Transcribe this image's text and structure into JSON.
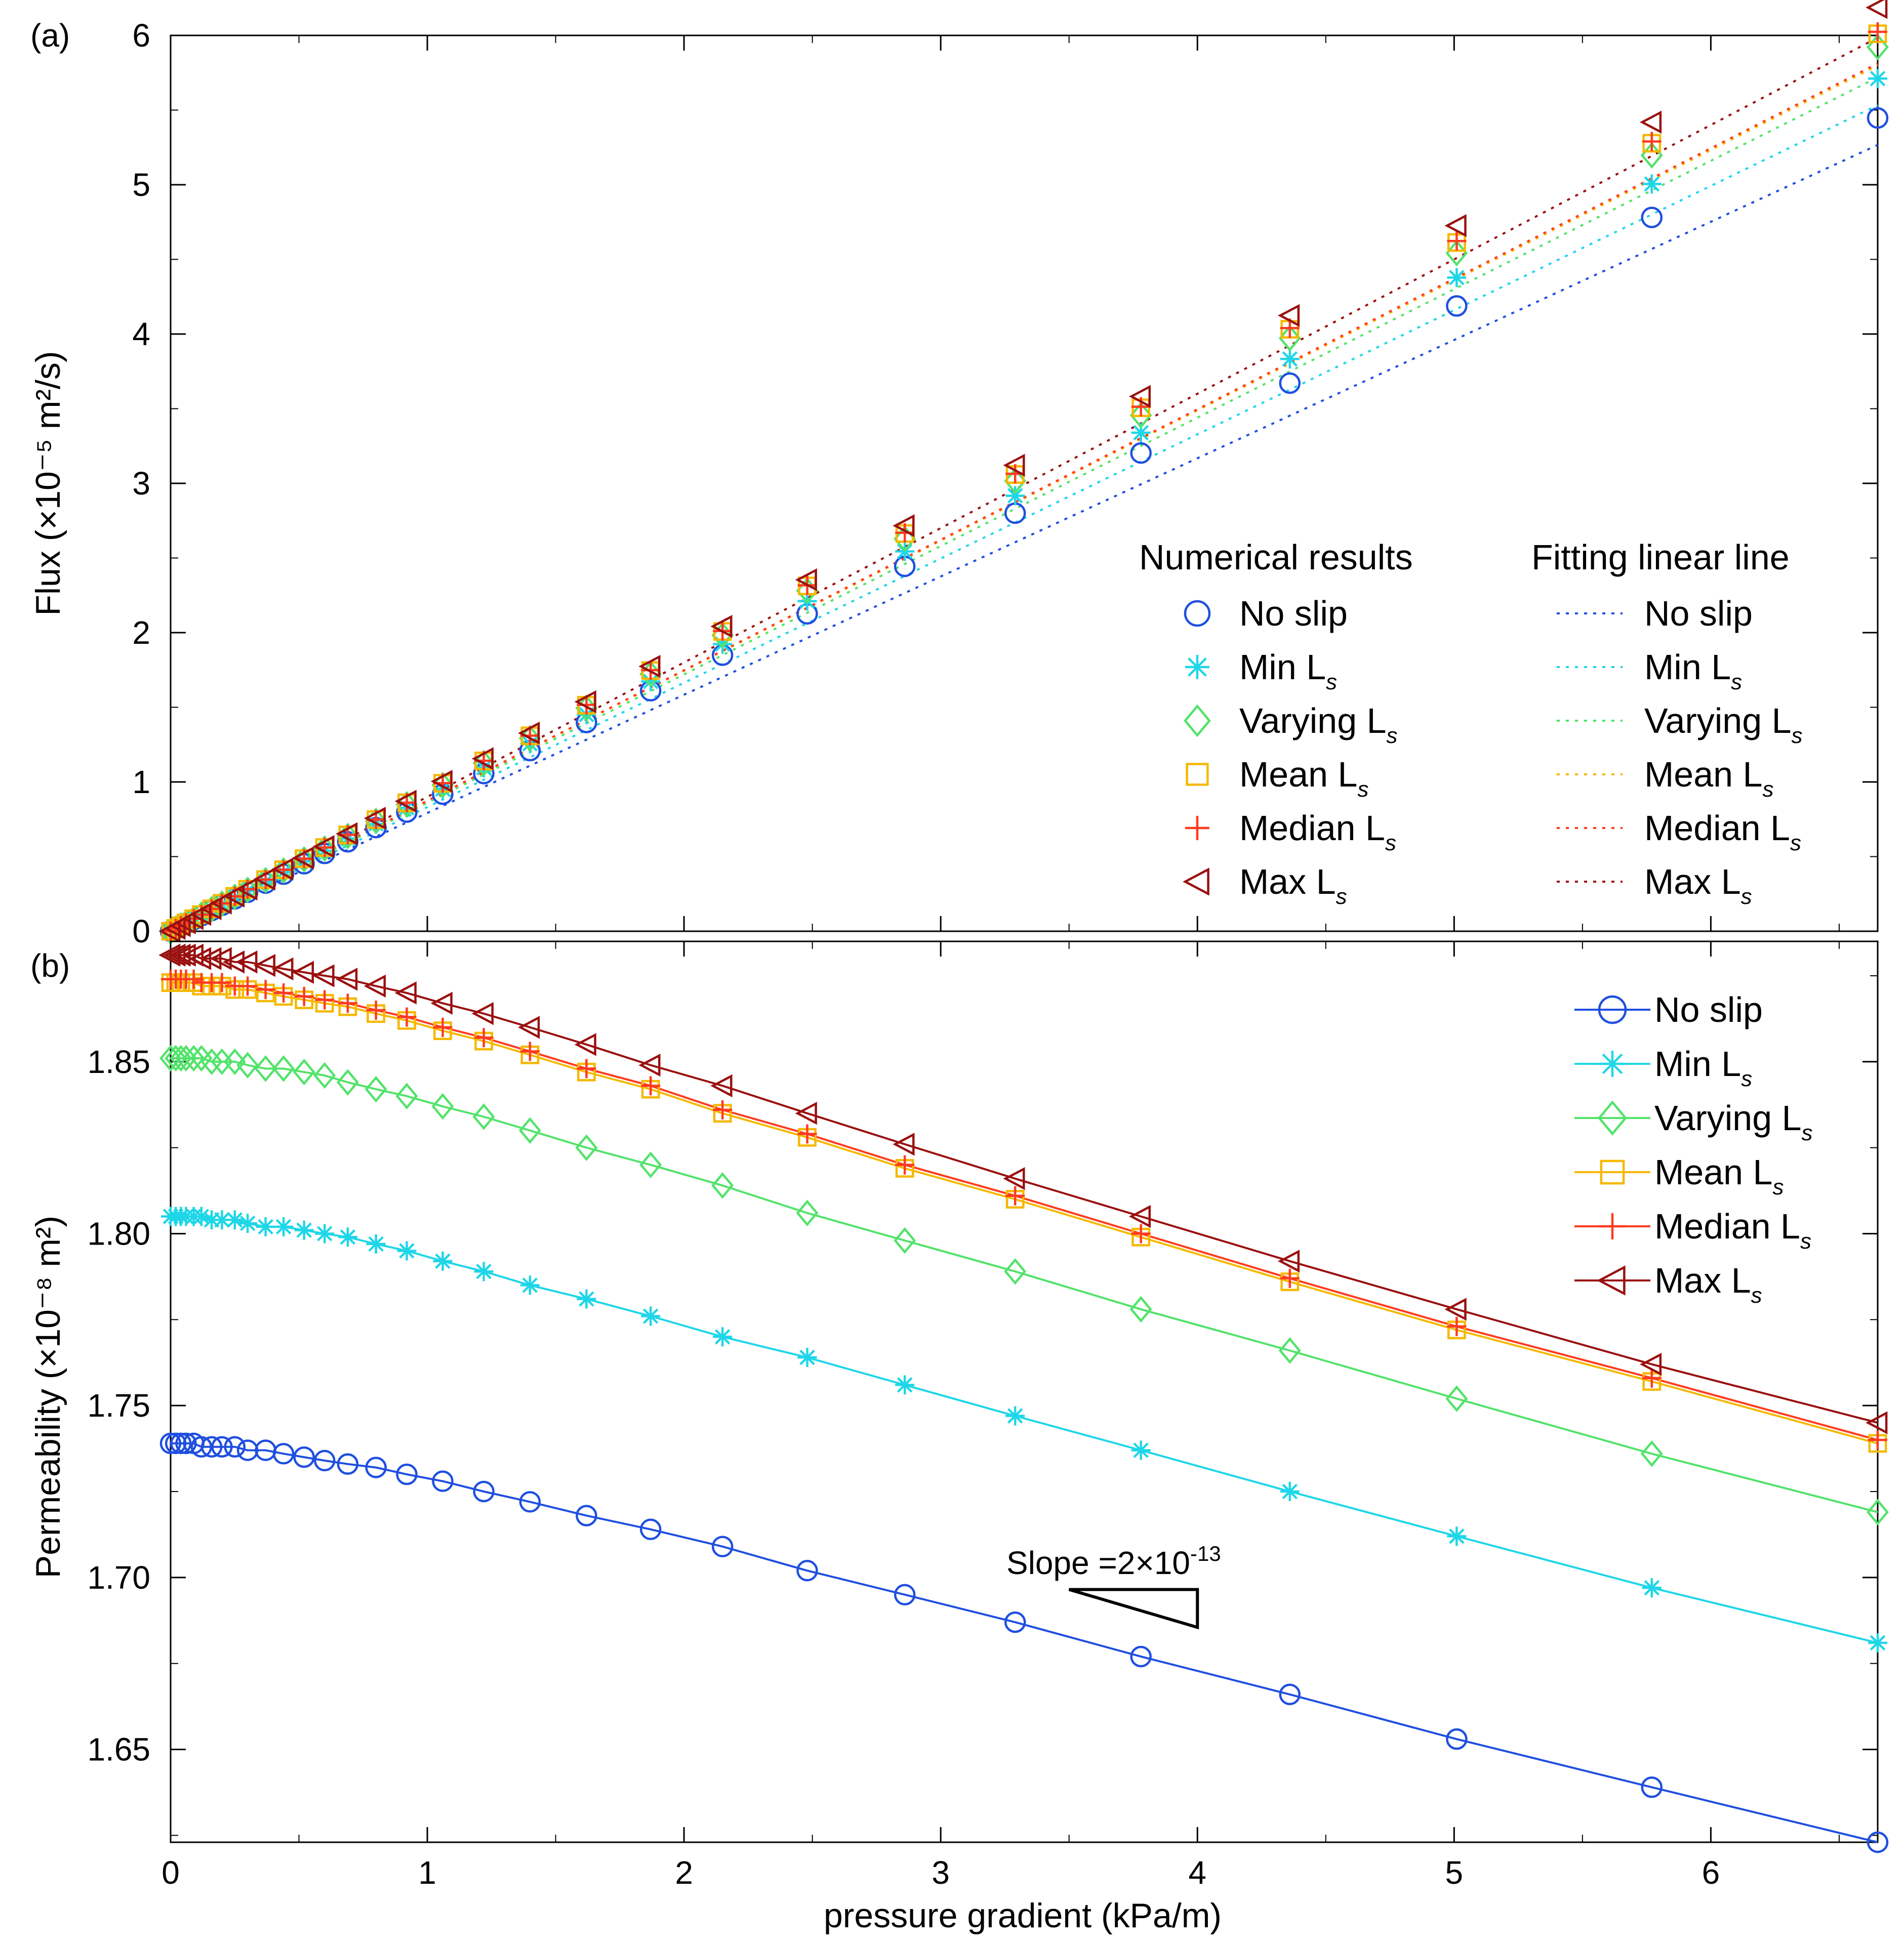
{
  "colors": {
    "no_slip": "#1f4fe0",
    "min": "#1fd6e8",
    "varying": "#52e36a",
    "mean": "#f5b800",
    "median": "#ff3b1f",
    "max": "#9a1010"
  },
  "chart_data": [
    {
      "id": "a",
      "type": "scatter",
      "panel_label": "(a)",
      "xlabel": "",
      "ylabel": "Flux (×10⁻⁵ m²/s)",
      "xlim": [
        0,
        6.65
      ],
      "ylim": [
        0,
        6
      ],
      "yticks": [
        "0",
        "1",
        "2",
        "3",
        "4",
        "5",
        "6"
      ],
      "legend_placement": "bottom-right",
      "legend": {
        "numerical_title": "Numerical results",
        "fitting_title": "Fitting linear line",
        "entries": [
          {
            "key": "no_slip",
            "label": "No slip",
            "marker": "circle"
          },
          {
            "key": "min",
            "label": "Min L",
            "sub": "s",
            "marker": "asterisk"
          },
          {
            "key": "varying",
            "label": "Varying L",
            "sub": "s",
            "marker": "diamond"
          },
          {
            "key": "mean",
            "label": "Mean L",
            "sub": "s",
            "marker": "square"
          },
          {
            "key": "median",
            "label": "Median L",
            "sub": "s",
            "marker": "plus"
          },
          {
            "key": "max",
            "label": "Max L",
            "sub": "s",
            "marker": "triangle-left"
          }
        ]
      },
      "x": [
        0.0,
        0.02,
        0.04,
        0.06,
        0.09,
        0.12,
        0.16,
        0.2,
        0.25,
        0.3,
        0.37,
        0.44,
        0.52,
        0.6,
        0.69,
        0.8,
        0.92,
        1.06,
        1.22,
        1.4,
        1.62,
        1.87,
        2.15,
        2.48,
        2.86,
        3.29,
        3.78,
        4.36,
        5.01,
        5.77,
        6.65
      ],
      "series": [
        {
          "key": "no_slip",
          "name": "No slip",
          "values": [
            0.0,
            0.017,
            0.035,
            0.052,
            0.078,
            0.104,
            0.139,
            0.174,
            0.217,
            0.261,
            0.322,
            0.382,
            0.452,
            0.521,
            0.599,
            0.694,
            0.798,
            0.918,
            1.056,
            1.21,
            1.398,
            1.611,
            1.849,
            2.126,
            2.444,
            2.8,
            3.203,
            3.671,
            4.188,
            4.781,
            5.447
          ],
          "fit_slope": 0.792
        },
        {
          "key": "min",
          "name": "Min L_s",
          "values": [
            0.0,
            0.018,
            0.036,
            0.054,
            0.081,
            0.108,
            0.144,
            0.18,
            0.225,
            0.271,
            0.333,
            0.396,
            0.468,
            0.54,
            0.621,
            0.719,
            0.827,
            0.952,
            1.095,
            1.256,
            1.451,
            1.673,
            1.923,
            2.211,
            2.544,
            2.917,
            3.339,
            3.833,
            4.378,
            5.005,
            5.711
          ],
          "fit_slope": 0.832
        },
        {
          "key": "varying",
          "name": "Varying L_s",
          "values": [
            0.0,
            0.018,
            0.037,
            0.055,
            0.083,
            0.111,
            0.148,
            0.185,
            0.231,
            0.277,
            0.342,
            0.407,
            0.481,
            0.554,
            0.638,
            0.739,
            0.85,
            0.979,
            1.126,
            1.292,
            1.494,
            1.723,
            1.982,
            2.281,
            2.628,
            3.016,
            3.456,
            3.972,
            4.542,
            5.197,
            5.922
          ],
          "fit_slope": 0.86
        },
        {
          "key": "mean",
          "name": "Mean L_s",
          "values": [
            0.0,
            0.019,
            0.037,
            0.056,
            0.084,
            0.112,
            0.15,
            0.187,
            0.234,
            0.281,
            0.346,
            0.412,
            0.486,
            0.561,
            0.645,
            0.748,
            0.86,
            0.991,
            1.141,
            1.309,
            1.514,
            1.746,
            2.008,
            2.313,
            2.664,
            3.059,
            3.506,
            4.032,
            4.613,
            5.278,
            6.011
          ],
          "fit_slope": 0.872
        },
        {
          "key": "median",
          "name": "Median L_s",
          "values": [
            0.0,
            0.019,
            0.037,
            0.056,
            0.084,
            0.112,
            0.15,
            0.187,
            0.234,
            0.281,
            0.346,
            0.412,
            0.486,
            0.561,
            0.646,
            0.748,
            0.861,
            0.992,
            1.142,
            1.31,
            1.516,
            1.749,
            2.011,
            2.317,
            2.669,
            3.064,
            3.513,
            4.04,
            4.623,
            5.29,
            6.024
          ],
          "fit_slope": 0.874
        },
        {
          "key": "max",
          "name": "Max L_s",
          "values": [
            0.0,
            0.019,
            0.038,
            0.057,
            0.085,
            0.113,
            0.151,
            0.189,
            0.236,
            0.283,
            0.35,
            0.416,
            0.491,
            0.567,
            0.653,
            0.757,
            0.871,
            1.004,
            1.156,
            1.327,
            1.537,
            1.774,
            2.042,
            2.354,
            2.716,
            3.121,
            3.582,
            4.124,
            4.726,
            5.419,
            6.187
          ],
          "fit_slope": 0.9
        }
      ]
    },
    {
      "id": "b",
      "type": "line",
      "panel_label": "(b)",
      "xlabel": "pressure gradient (kPa/m)",
      "ylabel": "Permeability (×10⁻⁸ m²)",
      "xlim": [
        0,
        6.65
      ],
      "ylim": [
        1.623,
        1.885
      ],
      "xticks": [
        "0",
        "1",
        "2",
        "3",
        "4",
        "5",
        "6"
      ],
      "yticks": [
        "1.65",
        "1.70",
        "1.75",
        "1.80",
        "1.85"
      ],
      "legend_placement": "top-right",
      "legend": {
        "entries": [
          {
            "key": "no_slip",
            "label": "No slip",
            "marker": "circle"
          },
          {
            "key": "min",
            "label": "Min L",
            "sub": "s",
            "marker": "asterisk"
          },
          {
            "key": "varying",
            "label": "Varying L",
            "sub": "s",
            "marker": "diamond"
          },
          {
            "key": "mean",
            "label": "Mean L",
            "sub": "s",
            "marker": "square"
          },
          {
            "key": "median",
            "label": "Median L",
            "sub": "s",
            "marker": "plus"
          },
          {
            "key": "max",
            "label": "Max L",
            "sub": "s",
            "marker": "triangle-left"
          }
        ]
      },
      "annotation": {
        "text": "Slope =2×10",
        "sup": "-13",
        "triangle_x": [
          3.5,
          4.0
        ],
        "triangle_y": [
          1.6965,
          1.6855
        ]
      },
      "x": [
        0.0,
        0.02,
        0.04,
        0.06,
        0.09,
        0.12,
        0.16,
        0.2,
        0.25,
        0.3,
        0.37,
        0.44,
        0.52,
        0.6,
        0.69,
        0.8,
        0.92,
        1.06,
        1.22,
        1.4,
        1.62,
        1.87,
        2.15,
        2.48,
        2.86,
        3.29,
        3.78,
        4.36,
        5.01,
        5.77,
        6.65
      ],
      "series": [
        {
          "key": "no_slip",
          "name": "No slip",
          "values": [
            1.739,
            1.739,
            1.739,
            1.739,
            1.739,
            1.738,
            1.738,
            1.738,
            1.738,
            1.737,
            1.737,
            1.736,
            1.735,
            1.734,
            1.733,
            1.732,
            1.73,
            1.728,
            1.725,
            1.722,
            1.718,
            1.714,
            1.709,
            1.702,
            1.695,
            1.687,
            1.677,
            1.666,
            1.653,
            1.639,
            1.623
          ]
        },
        {
          "key": "min",
          "name": "Min L_s",
          "values": [
            1.805,
            1.805,
            1.805,
            1.805,
            1.805,
            1.805,
            1.804,
            1.804,
            1.804,
            1.803,
            1.802,
            1.802,
            1.801,
            1.8,
            1.799,
            1.797,
            1.795,
            1.792,
            1.789,
            1.785,
            1.781,
            1.776,
            1.77,
            1.764,
            1.756,
            1.747,
            1.737,
            1.725,
            1.712,
            1.697,
            1.681
          ]
        },
        {
          "key": "varying",
          "name": "Varying L_s",
          "values": [
            1.851,
            1.851,
            1.851,
            1.851,
            1.851,
            1.851,
            1.85,
            1.85,
            1.85,
            1.849,
            1.848,
            1.848,
            1.847,
            1.846,
            1.844,
            1.842,
            1.84,
            1.837,
            1.834,
            1.83,
            1.825,
            1.82,
            1.814,
            1.806,
            1.798,
            1.789,
            1.778,
            1.766,
            1.752,
            1.736,
            1.719
          ]
        },
        {
          "key": "mean",
          "name": "Mean L_s",
          "values": [
            1.873,
            1.873,
            1.873,
            1.873,
            1.873,
            1.872,
            1.872,
            1.872,
            1.871,
            1.871,
            1.87,
            1.869,
            1.868,
            1.867,
            1.866,
            1.864,
            1.862,
            1.859,
            1.856,
            1.852,
            1.847,
            1.842,
            1.835,
            1.828,
            1.819,
            1.81,
            1.799,
            1.786,
            1.772,
            1.757,
            1.739
          ]
        },
        {
          "key": "median",
          "name": "Median L_s",
          "values": [
            1.874,
            1.874,
            1.874,
            1.874,
            1.874,
            1.873,
            1.873,
            1.873,
            1.872,
            1.872,
            1.871,
            1.87,
            1.869,
            1.868,
            1.867,
            1.865,
            1.863,
            1.86,
            1.857,
            1.853,
            1.848,
            1.843,
            1.836,
            1.829,
            1.82,
            1.811,
            1.8,
            1.787,
            1.773,
            1.758,
            1.74
          ]
        },
        {
          "key": "max",
          "name": "Max L_s",
          "values": [
            1.881,
            1.881,
            1.881,
            1.881,
            1.881,
            1.88,
            1.88,
            1.88,
            1.879,
            1.879,
            1.878,
            1.877,
            1.876,
            1.875,
            1.874,
            1.872,
            1.87,
            1.867,
            1.864,
            1.86,
            1.855,
            1.849,
            1.843,
            1.835,
            1.826,
            1.816,
            1.805,
            1.792,
            1.778,
            1.762,
            1.745
          ]
        }
      ]
    }
  ]
}
